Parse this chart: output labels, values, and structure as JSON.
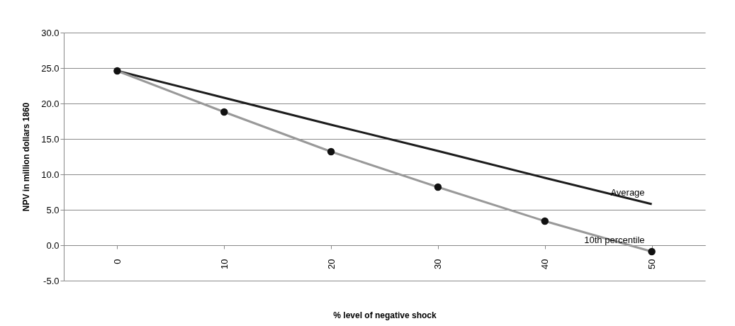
{
  "chart_data": {
    "type": "line",
    "xlabel": "% level of negative shock",
    "ylabel": "NPV in million dollars 1860",
    "categories": [
      "0",
      "10",
      "20",
      "30",
      "40",
      "50"
    ],
    "series": [
      {
        "name": "Average",
        "color": "#1c1c1c",
        "marker": "none",
        "values": [
          24.6,
          20.8,
          17.0,
          13.3,
          9.5,
          5.8
        ]
      },
      {
        "name": "10th percentile",
        "color": "#999999",
        "marker": "circle",
        "values": [
          24.6,
          18.8,
          13.2,
          8.2,
          3.4,
          -0.9
        ]
      }
    ],
    "ylim": [
      -5,
      30
    ],
    "yticks": [
      {
        "value": -5,
        "label": "-5.0"
      },
      {
        "value": 0,
        "label": "0.0"
      },
      {
        "value": 5,
        "label": "5.0"
      },
      {
        "value": 10,
        "label": "10.0"
      },
      {
        "value": 15,
        "label": "15.0"
      },
      {
        "value": 20,
        "label": "20.0"
      },
      {
        "value": 25,
        "label": "25.0"
      },
      {
        "value": 30,
        "label": "30.0"
      }
    ],
    "grid": "y"
  }
}
